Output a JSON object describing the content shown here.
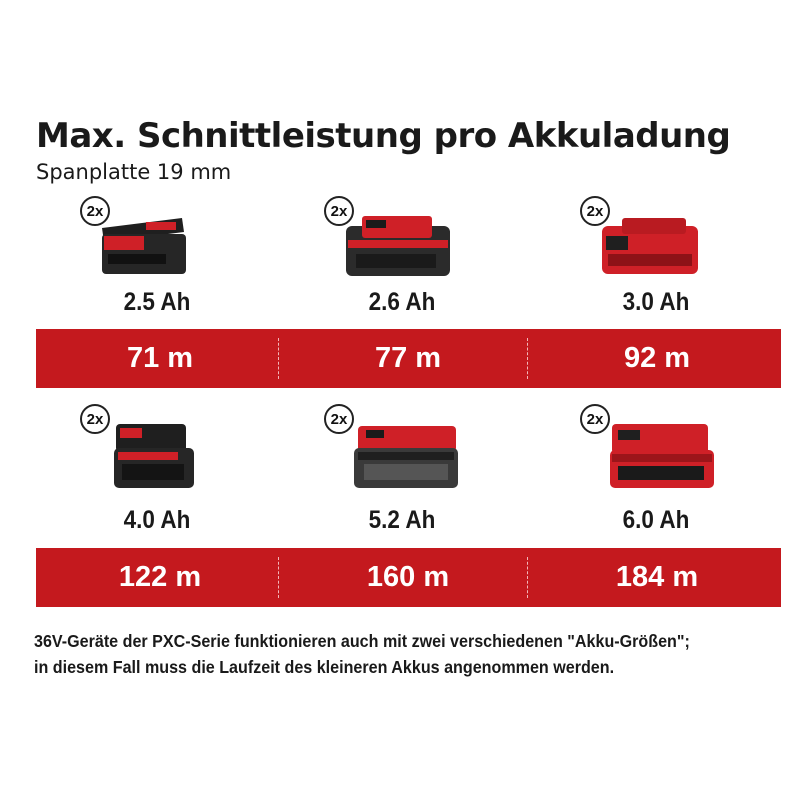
{
  "title": "Max. Schnittleistung pro Akkuladung",
  "subtitle": "Spanplatte 19 mm",
  "colors": {
    "band": "#c4191e",
    "battery_red": "#cf2027",
    "battery_dark": "#2a2a2a"
  },
  "rows": [
    {
      "batteries": [
        {
          "qty": "2x",
          "capacity": "2.5 Ah",
          "result": "71 m",
          "style": "black"
        },
        {
          "qty": "2x",
          "capacity": "2.6 Ah",
          "result": "77 m",
          "style": "dark-plus"
        },
        {
          "qty": "2x",
          "capacity": "3.0 Ah",
          "result": "92 m",
          "style": "red"
        }
      ]
    },
    {
      "batteries": [
        {
          "qty": "2x",
          "capacity": "4.0 Ah",
          "result": "122 m",
          "style": "black"
        },
        {
          "qty": "2x",
          "capacity": "5.2 Ah",
          "result": "160 m",
          "style": "dark-plus"
        },
        {
          "qty": "2x",
          "capacity": "6.0 Ah",
          "result": "184 m",
          "style": "red"
        }
      ]
    }
  ],
  "note": {
    "line1": "36V-Geräte der PXC-Serie funktionieren auch mit zwei verschiedenen \"Akku-Größen\";",
    "line2": "in diesem Fall muss die Laufzeit des kleineren Akkus angenommen werden."
  }
}
